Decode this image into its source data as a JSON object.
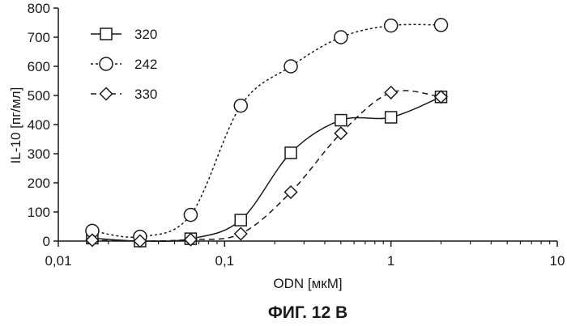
{
  "caption": "ФИГ. 12 В",
  "chart_data": {
    "type": "line",
    "xlabel": "ODN [мкМ]",
    "ylabel": "IL-10 [пг/мл]",
    "x_scale": "log",
    "xlim": [
      0.01,
      10
    ],
    "ylim": [
      0,
      800
    ],
    "x_ticks": [
      0.01,
      0.1,
      1,
      10
    ],
    "x_tick_labels": [
      "0,01",
      "0,1",
      "1",
      "10"
    ],
    "y_ticks": [
      0,
      100,
      200,
      300,
      400,
      500,
      600,
      700,
      800
    ],
    "y_tick_labels": [
      "0",
      "100",
      "200",
      "300",
      "400",
      "500",
      "600",
      "700",
      "800"
    ],
    "grid": false,
    "legend_position": "top-left",
    "series": [
      {
        "name": "320",
        "marker": "square",
        "line": "solid",
        "x": [
          0.016,
          0.031,
          0.0625,
          0.125,
          0.25,
          0.5,
          1,
          2
        ],
        "y": [
          10,
          0,
          8,
          72,
          303,
          415,
          425,
          495
        ]
      },
      {
        "name": "242",
        "marker": "circle",
        "line": "dotted",
        "x": [
          0.016,
          0.031,
          0.0625,
          0.125,
          0.25,
          0.5,
          1,
          2
        ],
        "y": [
          35,
          15,
          90,
          465,
          600,
          700,
          740,
          742
        ]
      },
      {
        "name": "330",
        "marker": "diamond",
        "line": "dashed",
        "x": [
          0.016,
          0.031,
          0.0625,
          0.125,
          0.25,
          0.5,
          1,
          2
        ],
        "y": [
          3,
          0,
          5,
          25,
          168,
          370,
          510,
          495
        ]
      }
    ]
  }
}
